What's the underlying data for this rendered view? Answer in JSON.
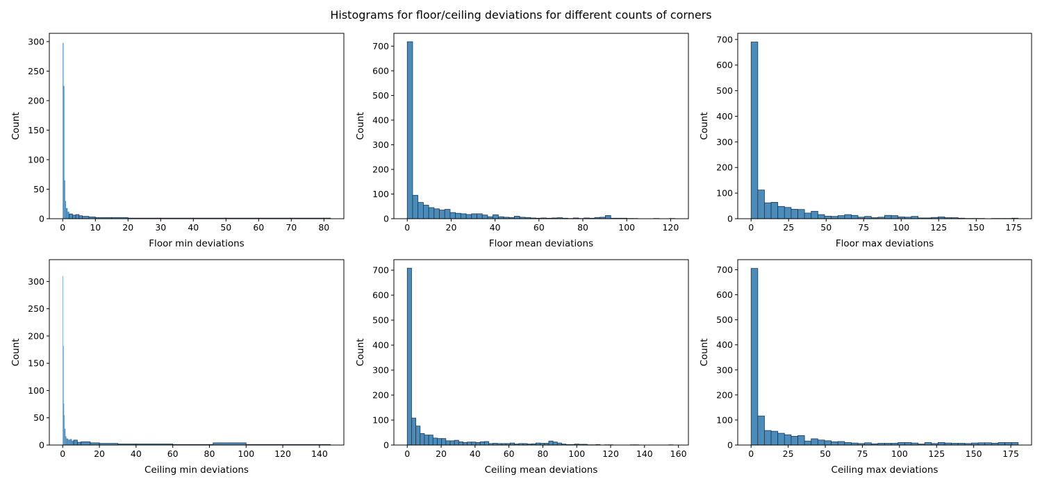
{
  "figure": {
    "suptitle": "Histograms for floor/ceiling deviations for different counts of corners",
    "bar_fill": "#4c8cba",
    "bar_edge": "#1f3550"
  },
  "chart_data": [
    {
      "type": "bar",
      "xlabel": "Floor min deviations",
      "ylabel": "Count",
      "xlim": [
        -4.1,
        86.1
      ],
      "ylim": [
        0,
        314
      ],
      "xticks": [
        0,
        10,
        20,
        30,
        40,
        50,
        60,
        70,
        80
      ],
      "yticks": [
        0,
        50,
        100,
        150,
        200,
        250,
        300
      ],
      "bin_edges": [
        0,
        0.25,
        0.5,
        0.75,
        1,
        1.5,
        2,
        3,
        4,
        5,
        6,
        8,
        10,
        15,
        20,
        30,
        50,
        82
      ],
      "values": [
        298,
        225,
        65,
        30,
        18,
        12,
        8,
        6,
        7,
        5,
        4,
        3,
        2,
        2,
        1,
        1,
        1
      ]
    },
    {
      "type": "bar",
      "xlabel": "Floor mean deviations",
      "ylabel": "Count",
      "xlim": [
        -6.1,
        128.1
      ],
      "ylim": [
        0,
        752
      ],
      "xticks": [
        0,
        20,
        40,
        60,
        80,
        100,
        120
      ],
      "yticks": [
        0,
        100,
        200,
        300,
        400,
        500,
        600,
        700
      ],
      "bin_edges": [
        0,
        2.44,
        4.88,
        7.32,
        9.76,
        12.2,
        14.64,
        17.08,
        19.52,
        21.96,
        24.4,
        26.84,
        29.28,
        31.72,
        34.16,
        36.6,
        39.04,
        41.48,
        43.92,
        46.36,
        48.8,
        51.24,
        53.68,
        56.12,
        58.56,
        61,
        63.44,
        65.88,
        68.32,
        70.76,
        73.2,
        75.64,
        78.08,
        80.52,
        82.96,
        85.4,
        87.84,
        90.28,
        92.72,
        95.16,
        97.6,
        100.04,
        102.48,
        104.92,
        107.36,
        109.8,
        112.24,
        114.68,
        117.12,
        119.56,
        122
      ],
      "values": [
        718,
        95,
        66,
        55,
        45,
        40,
        35,
        38,
        25,
        22,
        20,
        17,
        20,
        20,
        15,
        8,
        16,
        8,
        6,
        5,
        10,
        6,
        5,
        3,
        2,
        3,
        2,
        3,
        4,
        2,
        1,
        3,
        1,
        3,
        2,
        5,
        6,
        13,
        2,
        2,
        2,
        1,
        1,
        0,
        0,
        0,
        1,
        0,
        0,
        1
      ]
    },
    {
      "type": "bar",
      "xlabel": "Floor max deviations",
      "ylabel": "Count",
      "xlim": [
        -8.9,
        186.9
      ],
      "ylim": [
        0,
        724
      ],
      "xticks": [
        0,
        25,
        50,
        75,
        100,
        125,
        150,
        175
      ],
      "yticks": [
        0,
        100,
        200,
        300,
        400,
        500,
        600,
        700
      ],
      "bin_edges": [
        0,
        4.45,
        8.9,
        13.35,
        17.8,
        22.25,
        26.7,
        31.15,
        35.6,
        40.05,
        44.5,
        48.95,
        53.4,
        57.85,
        62.3,
        66.75,
        71.2,
        75.65,
        80.1,
        84.55,
        89,
        93.45,
        97.9,
        102.35,
        106.8,
        111.25,
        115.7,
        120.15,
        124.6,
        129.05,
        133.5,
        137.95,
        142.4,
        146.85,
        151.3,
        155.75,
        160.2,
        164.65,
        169.1,
        173.55,
        178
      ],
      "values": [
        690,
        112,
        62,
        64,
        48,
        44,
        37,
        36,
        22,
        29,
        16,
        10,
        9,
        12,
        16,
        13,
        6,
        9,
        4,
        6,
        13,
        12,
        7,
        6,
        9,
        3,
        3,
        5,
        7,
        4,
        4,
        2,
        1,
        1,
        1,
        0,
        1,
        1,
        1,
        2
      ]
    },
    {
      "type": "bar",
      "xlabel": "Ceiling min deviations",
      "ylabel": "Count",
      "xlim": [
        -7.3,
        153.3
      ],
      "ylim": [
        0,
        340
      ],
      "xticks": [
        0,
        20,
        40,
        60,
        80,
        100,
        120,
        140
      ],
      "yticks": [
        0,
        50,
        100,
        150,
        200,
        250,
        300
      ],
      "bin_edges": [
        0,
        0.25,
        0.5,
        0.75,
        1,
        1.5,
        2,
        3,
        4,
        5,
        6,
        8,
        10,
        15,
        20,
        30,
        40,
        60,
        80,
        82,
        100,
        146
      ],
      "values": [
        310,
        182,
        76,
        55,
        30,
        16,
        12,
        10,
        11,
        8,
        9,
        5,
        6,
        4,
        3,
        2,
        2,
        1,
        1,
        4,
        1
      ]
    },
    {
      "type": "bar",
      "xlabel": "Ceiling mean deviations",
      "ylabel": "Count",
      "xlim": [
        -7.9,
        165.9
      ],
      "ylim": [
        0,
        742
      ],
      "xticks": [
        0,
        20,
        40,
        60,
        80,
        100,
        120,
        140,
        160
      ],
      "yticks": [
        0,
        100,
        200,
        300,
        400,
        500,
        600,
        700
      ],
      "bin_edges": [
        0,
        2.53,
        5.06,
        7.59,
        10.12,
        12.65,
        15.18,
        17.71,
        20.24,
        22.77,
        25.3,
        27.83,
        30.36,
        32.89,
        35.42,
        37.95,
        40.48,
        43.01,
        45.54,
        48.07,
        50.6,
        53.13,
        55.66,
        58.19,
        60.72,
        63.25,
        65.78,
        68.31,
        70.84,
        73.37,
        75.9,
        78.43,
        80.96,
        83.49,
        86.02,
        88.55,
        91.08,
        93.61,
        96.14,
        98.67,
        101.2,
        103.73,
        106.26,
        108.79,
        111.32,
        113.85,
        116.38,
        118.91,
        121.44,
        123.97,
        126.5,
        129.03,
        131.56,
        134.09,
        136.62,
        139.15,
        141.68,
        144.21,
        146.74,
        149.27,
        151.8,
        154.33,
        156.86,
        158
      ],
      "values": [
        708,
        108,
        76,
        46,
        40,
        40,
        28,
        26,
        26,
        17,
        17,
        19,
        13,
        10,
        12,
        12,
        10,
        13,
        14,
        6,
        7,
        6,
        6,
        6,
        8,
        4,
        6,
        6,
        4,
        5,
        8,
        7,
        7,
        16,
        12,
        8,
        4,
        2,
        2,
        4,
        3,
        3,
        1,
        1,
        2,
        0,
        1,
        1,
        0,
        0,
        0,
        0,
        1,
        1,
        0,
        0,
        0,
        0,
        0,
        0,
        0,
        1,
        1
      ]
    },
    {
      "type": "bar",
      "xlabel": "Ceiling max deviations",
      "ylabel": "Count",
      "xlim": [
        -9,
        189
      ],
      "ylim": [
        0,
        740
      ],
      "xticks": [
        0,
        25,
        50,
        75,
        100,
        125,
        150,
        175
      ],
      "yticks": [
        0,
        100,
        200,
        300,
        400,
        500,
        600,
        700
      ],
      "bin_edges": [
        0,
        4.5,
        9,
        13.5,
        18,
        22.5,
        27,
        31.5,
        36,
        40.5,
        45,
        49.5,
        54,
        58.5,
        63,
        67.5,
        72,
        76.5,
        81,
        85.5,
        90,
        94.5,
        99,
        103.5,
        108,
        112.5,
        117,
        121.5,
        126,
        130.5,
        135,
        139.5,
        144,
        148.5,
        153,
        157.5,
        162,
        166.5,
        171,
        175.5,
        180
      ],
      "values": [
        705,
        116,
        58,
        55,
        47,
        41,
        35,
        38,
        16,
        25,
        20,
        17,
        13,
        14,
        10,
        8,
        6,
        9,
        5,
        7,
        7,
        7,
        10,
        10,
        8,
        4,
        10,
        6,
        10,
        8,
        7,
        7,
        6,
        8,
        9,
        9,
        7,
        10,
        10,
        10
      ]
    }
  ]
}
